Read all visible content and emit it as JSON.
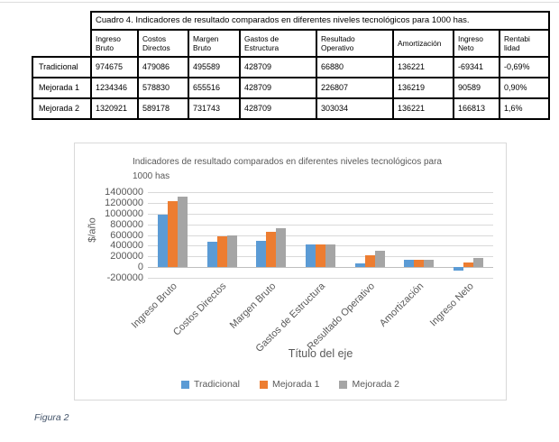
{
  "table": {
    "title": "Cuadro 4. Indicadores de resultado comparados en diferentes niveles tecnológicos para 1000 has.",
    "columns": [
      "Ingreso Bruto",
      "Costos Directos",
      "Margen Bruto",
      "Gastos de Estructura",
      "Resultado Operativo",
      "Amortización",
      "Ingreso Neto",
      "Rentabi lidad"
    ],
    "rows": [
      {
        "label": "Tradicional",
        "values": [
          "974675",
          "479086",
          "495589",
          "428709",
          "66880",
          "136221",
          "-69341",
          "-0,69%"
        ]
      },
      {
        "label": "Mejorada 1",
        "values": [
          "1234346",
          "578830",
          "655516",
          "428709",
          "226807",
          "136219",
          "90589",
          "0,90%"
        ]
      },
      {
        "label": "Mejorada 2",
        "values": [
          "1320921",
          "589178",
          "731743",
          "428709",
          "303034",
          "136221",
          "166813",
          "1,6%"
        ]
      }
    ]
  },
  "chart_data": {
    "type": "bar",
    "title": "Indicadores de resultado comparados en diferentes niveles tecnológicos para 1000 has",
    "categories": [
      "Ingreso Bruto",
      "Costos Directos",
      "Margen Bruto",
      "Gastos de Estructura",
      "Resultado Operativo",
      "Amortización",
      "Ingreso Neto"
    ],
    "series": [
      {
        "name": "Tradicional",
        "color": "#5B9BD5",
        "values": [
          974675,
          479086,
          495589,
          428709,
          66880,
          136221,
          -69341
        ]
      },
      {
        "name": "Mejorada 1",
        "color": "#ED7D31",
        "values": [
          1234346,
          578830,
          655516,
          428709,
          226807,
          136219,
          90589
        ]
      },
      {
        "name": "Mejorada 2",
        "color": "#A5A5A5",
        "values": [
          1320921,
          589178,
          731743,
          428709,
          303034,
          136221,
          166813
        ]
      }
    ],
    "ylabel": "$/año",
    "xlabel": "Título del eje",
    "ylim": [
      -200000,
      1400000
    ],
    "ytick_step": 200000,
    "grid": true,
    "legend_position": "bottom"
  },
  "caption": "Figura 2"
}
